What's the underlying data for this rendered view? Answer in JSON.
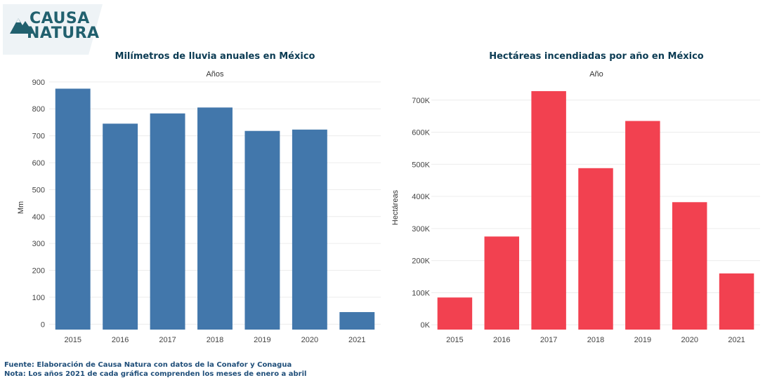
{
  "logo": {
    "line1": "CAUSA",
    "line2": "NATURA"
  },
  "chart_data": [
    {
      "type": "bar",
      "title": "Milímetros de lluvia anuales en México",
      "xlabel": "Años",
      "ylabel": "Mm",
      "categories": [
        "2015",
        "2016",
        "2017",
        "2018",
        "2019",
        "2020",
        "2021"
      ],
      "values": [
        875,
        745,
        783,
        805,
        718,
        723,
        45
      ],
      "ylim": [
        -20,
        910
      ],
      "yticks": [
        0,
        100,
        200,
        300,
        400,
        500,
        600,
        700,
        800,
        900
      ],
      "ytick_labels": [
        "0",
        "100",
        "200",
        "300",
        "400",
        "500",
        "600",
        "700",
        "800",
        "900"
      ],
      "color": "#4277ab"
    },
    {
      "type": "bar",
      "title": "Hectáreas incendiadas por año en México",
      "xlabel": "Año",
      "ylabel": "Hectáreas",
      "categories": [
        "2015",
        "2016",
        "2017",
        "2018",
        "2019",
        "2020",
        "2021"
      ],
      "values": [
        85000,
        275000,
        728000,
        488000,
        635000,
        382000,
        160000
      ],
      "ylim": [
        -15000,
        765000
      ],
      "yticks": [
        0,
        100000,
        200000,
        300000,
        400000,
        500000,
        600000,
        700000
      ],
      "ytick_labels": [
        "0K",
        "100K",
        "200K",
        "300K",
        "400K",
        "500K",
        "600K",
        "700K"
      ],
      "color": "#f24150"
    }
  ],
  "footer": {
    "source": "Fuente: Elaboración de Causa Natura con datos de la Conafor y Conagua",
    "note": "Nota: Los años 2021 de cada gráfica comprenden los meses de enero a abril"
  }
}
